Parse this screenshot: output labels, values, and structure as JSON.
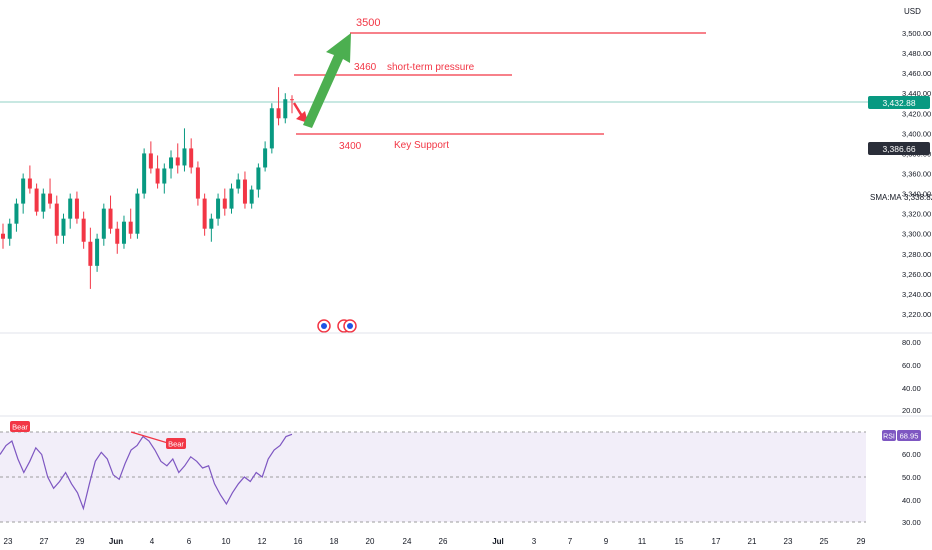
{
  "currency": "USD",
  "colors": {
    "up": "#089981",
    "down": "#f23645",
    "annotation": "#f23645",
    "arrow_up": "#4caf50",
    "rsi_line": "#7e57c2",
    "rsi_band": "#ede7f6",
    "last_price_bg": "#089981",
    "grid": "#e0e3eb",
    "axis_text": "#131722"
  },
  "price_axis": {
    "ticks": [
      "3,500.00",
      "3,480.00",
      "3,460.00",
      "3,440.00",
      "3,420.00",
      "3,400.00",
      "3,380.00",
      "3,360.00",
      "3,340.00",
      "3,320.00",
      "3,300.00",
      "3,280.00",
      "3,260.00",
      "3,240.00",
      "3,220.00"
    ],
    "last_price": "3,432.88",
    "secondary_price": "3,386.66",
    "sma_label": "SMA:MA",
    "sma_value": "3,338.82"
  },
  "middle_axis": {
    "ticks": [
      "80.00",
      "60.00",
      "40.00",
      "20.00"
    ]
  },
  "rsi_axis": {
    "ticks": [
      "60.00",
      "50.00",
      "40.00",
      "30.00"
    ],
    "label": "RSI",
    "value": "68.95"
  },
  "time_axis": {
    "ticks": [
      "23",
      "27",
      "29",
      "Jun",
      "4",
      "6",
      "10",
      "12",
      "16",
      "18",
      "20",
      "24",
      "26",
      "Jul",
      "3",
      "7",
      "9",
      "11",
      "15",
      "17",
      "21",
      "23",
      "25",
      "29"
    ]
  },
  "annotations": {
    "target_price": "3500",
    "pressure_price": "3460",
    "pressure_text": "short-term pressure",
    "support_price": "3400",
    "support_text": "Key Support",
    "bear_label": "Bear"
  },
  "chart_data": [
    {
      "type": "candlestick",
      "title": "",
      "ylim": [
        3212,
        3530
      ],
      "levels": [
        {
          "price": 3500,
          "label": "3500"
        },
        {
          "price": 3460,
          "label": "short-term pressure"
        },
        {
          "price": 3400,
          "label": "Key Support"
        }
      ],
      "ohlc": [
        [
          3300,
          3310,
          3285,
          3295
        ],
        [
          3295,
          3315,
          3288,
          3310
        ],
        [
          3310,
          3335,
          3302,
          3330
        ],
        [
          3330,
          3360,
          3320,
          3355
        ],
        [
          3355,
          3368,
          3340,
          3345
        ],
        [
          3345,
          3350,
          3318,
          3322
        ],
        [
          3322,
          3345,
          3315,
          3340
        ],
        [
          3340,
          3355,
          3325,
          3330
        ],
        [
          3330,
          3338,
          3290,
          3298
        ],
        [
          3298,
          3320,
          3290,
          3315
        ],
        [
          3315,
          3340,
          3305,
          3335
        ],
        [
          3335,
          3342,
          3310,
          3315
        ],
        [
          3315,
          3322,
          3285,
          3292
        ],
        [
          3292,
          3306,
          3245,
          3268
        ],
        [
          3268,
          3300,
          3262,
          3295
        ],
        [
          3295,
          3330,
          3288,
          3325
        ],
        [
          3325,
          3338,
          3300,
          3305
        ],
        [
          3305,
          3312,
          3280,
          3290
        ],
        [
          3290,
          3318,
          3285,
          3312
        ],
        [
          3312,
          3325,
          3295,
          3300
        ],
        [
          3300,
          3345,
          3295,
          3340
        ],
        [
          3340,
          3385,
          3335,
          3380
        ],
        [
          3380,
          3392,
          3360,
          3365
        ],
        [
          3365,
          3378,
          3345,
          3350
        ],
        [
          3350,
          3370,
          3340,
          3365
        ],
        [
          3365,
          3383,
          3355,
          3376
        ],
        [
          3376,
          3390,
          3360,
          3368
        ],
        [
          3368,
          3405,
          3362,
          3385
        ],
        [
          3385,
          3395,
          3360,
          3366
        ],
        [
          3366,
          3372,
          3328,
          3335
        ],
        [
          3335,
          3340,
          3298,
          3305
        ],
        [
          3305,
          3320,
          3292,
          3315
        ],
        [
          3315,
          3340,
          3308,
          3335
        ],
        [
          3335,
          3345,
          3318,
          3325
        ],
        [
          3325,
          3350,
          3320,
          3345
        ],
        [
          3345,
          3360,
          3340,
          3354
        ],
        [
          3354,
          3362,
          3325,
          3330
        ],
        [
          3330,
          3348,
          3325,
          3344
        ],
        [
          3344,
          3370,
          3336,
          3366
        ],
        [
          3366,
          3392,
          3362,
          3385
        ],
        [
          3385,
          3430,
          3380,
          3425
        ],
        [
          3425,
          3446,
          3408,
          3415
        ],
        [
          3415,
          3440,
          3410,
          3434
        ],
        [
          3434,
          3438,
          3420,
          3433
        ]
      ]
    },
    {
      "type": "line",
      "title": "",
      "series": [
        {
          "name": "RSI",
          "values": [
            60,
            64,
            66,
            58,
            52,
            57,
            63,
            60,
            50,
            45,
            48,
            52,
            47,
            43,
            36,
            47,
            57,
            61,
            58,
            51,
            49,
            56,
            62,
            64,
            68,
            66,
            62,
            57,
            55,
            58,
            52,
            55,
            59,
            57,
            54,
            55,
            47,
            42,
            38,
            43,
            47,
            50,
            48,
            52,
            50,
            58,
            62,
            64,
            68,
            69
          ]
        },
        {
          "name": "Bear",
          "values": [
            69,
            61
          ]
        }
      ],
      "ylim": [
        28,
        72
      ],
      "levels": [
        70,
        50,
        30
      ]
    }
  ]
}
